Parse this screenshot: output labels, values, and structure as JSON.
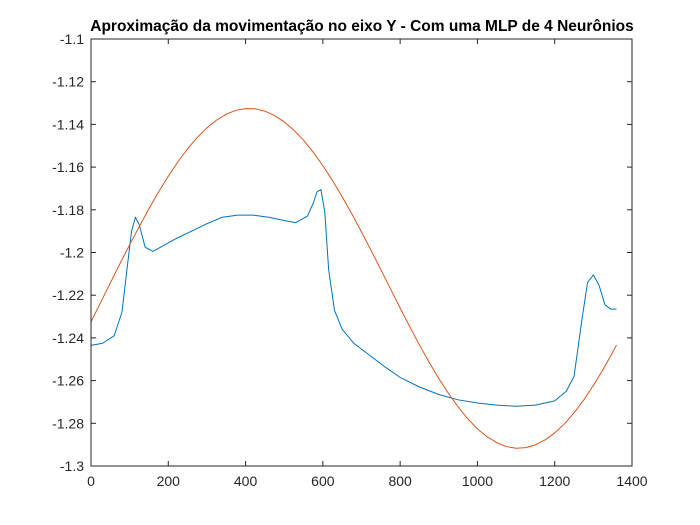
{
  "chart_data": {
    "type": "line",
    "title": "Aproximação da movimentação no eixo Y - Com uma MLP de 4 Neurônios",
    "xlabel": "",
    "ylabel": "",
    "xlim": [
      0,
      1400
    ],
    "ylim": [
      -1.3,
      -1.1
    ],
    "xticks": [
      0,
      200,
      400,
      600,
      800,
      1000,
      1200,
      1400
    ],
    "xtick_labels": [
      "0",
      "200",
      "400",
      "600",
      "800",
      "1000",
      "1200",
      "1400"
    ],
    "yticks": [
      -1.3,
      -1.28,
      -1.26,
      -1.24,
      -1.22,
      -1.2,
      -1.18,
      -1.16,
      -1.14,
      -1.12,
      -1.1
    ],
    "ytick_labels": [
      "-1.3",
      "-1.28",
      "-1.26",
      "-1.24",
      "-1.22",
      "-1.2",
      "-1.18",
      "-1.16",
      "-1.14",
      "-1.12",
      "-1.1"
    ],
    "grid": false,
    "legend": "none",
    "series": [
      {
        "color": "#0072BD",
        "x": [
          0,
          30,
          60,
          80,
          95,
          105,
          115,
          125,
          140,
          160,
          180,
          220,
          260,
          300,
          340,
          380,
          420,
          460,
          500,
          530,
          560,
          575,
          585,
          595,
          605,
          615,
          630,
          650,
          680,
          720,
          760,
          800,
          850,
          900,
          950,
          1000,
          1050,
          1100,
          1150,
          1200,
          1230,
          1250,
          1270,
          1285,
          1300,
          1315,
          1330,
          1345,
          1360
        ],
        "y": [
          -1.2435,
          -1.2425,
          -1.239,
          -1.228,
          -1.205,
          -1.19,
          -1.1835,
          -1.187,
          -1.1975,
          -1.1995,
          -1.1975,
          -1.1935,
          -1.19,
          -1.1865,
          -1.1835,
          -1.1825,
          -1.1825,
          -1.1835,
          -1.185,
          -1.186,
          -1.183,
          -1.177,
          -1.1715,
          -1.1705,
          -1.181,
          -1.208,
          -1.227,
          -1.236,
          -1.2425,
          -1.248,
          -1.2535,
          -1.2585,
          -1.263,
          -1.2665,
          -1.269,
          -1.2705,
          -1.2715,
          -1.272,
          -1.2715,
          -1.2695,
          -1.265,
          -1.258,
          -1.232,
          -1.214,
          -1.2105,
          -1.2155,
          -1.2245,
          -1.2265,
          -1.2265
        ]
      },
      {
        "color": "#D95319",
        "x": [
          0,
          25,
          50,
          75,
          100,
          125,
          150,
          175,
          200,
          225,
          250,
          275,
          300,
          325,
          350,
          375,
          400,
          425,
          450,
          475,
          500,
          525,
          550,
          575,
          600,
          625,
          650,
          675,
          700,
          725,
          750,
          775,
          800,
          825,
          850,
          875,
          900,
          925,
          950,
          975,
          1000,
          1025,
          1050,
          1075,
          1100,
          1125,
          1150,
          1175,
          1200,
          1225,
          1250,
          1275,
          1300,
          1325,
          1350,
          1360
        ],
        "y": [
          -1.2325,
          -1.2234,
          -1.2143,
          -1.2052,
          -1.1964,
          -1.1878,
          -1.1795,
          -1.1716,
          -1.1643,
          -1.1575,
          -1.1514,
          -1.1461,
          -1.1416,
          -1.138,
          -1.1352,
          -1.1334,
          -1.1326,
          -1.1327,
          -1.1338,
          -1.1358,
          -1.1388,
          -1.1427,
          -1.1474,
          -1.153,
          -1.1593,
          -1.1663,
          -1.1739,
          -1.1819,
          -1.1904,
          -1.1991,
          -1.208,
          -1.217,
          -1.226,
          -1.2348,
          -1.2433,
          -1.2514,
          -1.259,
          -1.266,
          -1.2723,
          -1.2779,
          -1.2826,
          -1.2863,
          -1.2891,
          -1.2909,
          -1.2917,
          -1.2914,
          -1.2901,
          -1.2878,
          -1.2845,
          -1.2803,
          -1.2751,
          -1.2691,
          -1.2623,
          -1.2548,
          -1.2467,
          -1.2433
        ]
      }
    ]
  }
}
